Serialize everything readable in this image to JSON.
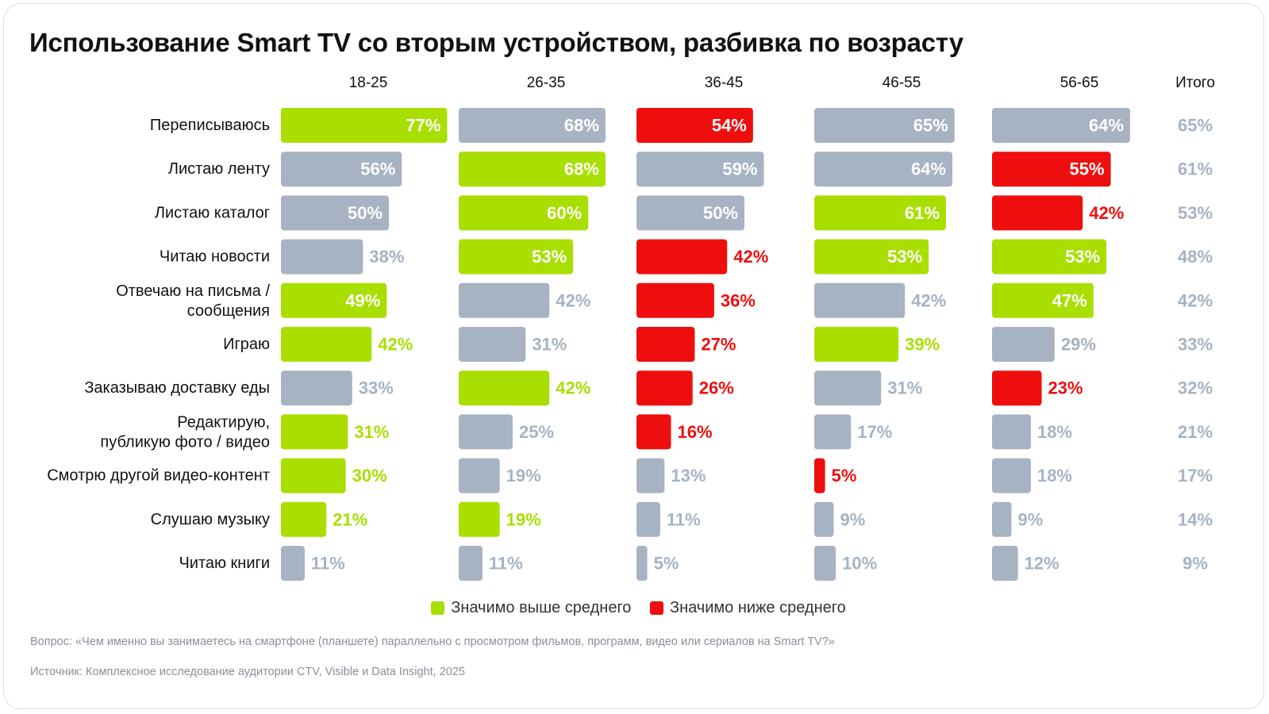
{
  "title": "Использование Smart TV со вторым устройством, разбивка по возрасту",
  "colors": {
    "above": "#a8df00",
    "below": "#ef0e0e",
    "neutral": "#a7b3c3"
  },
  "chart_data": {
    "type": "bar",
    "orientation": "horizontal",
    "title": "Использование Smart TV со вторым устройством, разбивка по возрасту",
    "total_label": "Итого",
    "categories": [
      [
        "Переписываюсь"
      ],
      [
        "Листаю ленту"
      ],
      [
        "Листаю каталог"
      ],
      [
        "Читаю новости"
      ],
      [
        "Отвечаю на письма /",
        "сообщения"
      ],
      [
        "Играю"
      ],
      [
        "Заказываю доставку еды"
      ],
      [
        "Редактирую,",
        "публикую фото / видео"
      ],
      [
        "Смотрю другой видео-контент"
      ],
      [
        "Слушаю музыку"
      ],
      [
        "Читаю книги"
      ]
    ],
    "series": [
      {
        "name": "18-25",
        "values": [
          77,
          56,
          50,
          38,
          49,
          42,
          33,
          31,
          30,
          21,
          11
        ],
        "significance": [
          "above",
          "neutral",
          "neutral",
          "neutral",
          "above",
          "above",
          "neutral",
          "above",
          "above",
          "above",
          "neutral"
        ]
      },
      {
        "name": "26-35",
        "values": [
          68,
          68,
          60,
          53,
          42,
          31,
          42,
          25,
          19,
          19,
          11
        ],
        "significance": [
          "neutral",
          "above",
          "above",
          "above",
          "neutral",
          "neutral",
          "above",
          "neutral",
          "neutral",
          "above",
          "neutral"
        ]
      },
      {
        "name": "36-45",
        "values": [
          54,
          59,
          50,
          42,
          36,
          27,
          26,
          16,
          13,
          11,
          5
        ],
        "significance": [
          "below",
          "neutral",
          "neutral",
          "below",
          "below",
          "below",
          "below",
          "below",
          "neutral",
          "neutral",
          "neutral"
        ]
      },
      {
        "name": "46-55",
        "values": [
          65,
          64,
          61,
          53,
          42,
          39,
          31,
          17,
          5,
          9,
          10
        ],
        "significance": [
          "neutral",
          "neutral",
          "above",
          "above",
          "neutral",
          "above",
          "neutral",
          "neutral",
          "below",
          "neutral",
          "neutral"
        ]
      },
      {
        "name": "56-65",
        "values": [
          64,
          55,
          42,
          53,
          47,
          29,
          23,
          18,
          18,
          9,
          12
        ],
        "significance": [
          "neutral",
          "below",
          "below",
          "above",
          "above",
          "neutral",
          "below",
          "neutral",
          "neutral",
          "neutral",
          "neutral"
        ]
      }
    ],
    "totals": [
      65,
      61,
      53,
      48,
      42,
      33,
      32,
      21,
      17,
      14,
      9
    ],
    "value_suffix": "%",
    "legend": [
      {
        "key": "above",
        "label": "Значимо выше среднего"
      },
      {
        "key": "below",
        "label": "Значимо ниже среднего"
      }
    ],
    "legend_placement": "bottom-center",
    "grid": false
  },
  "footer": {
    "question": "Вопрос: «Чем именно вы занимаетесь на смартфоне (планшете) параллельно с просмотром фильмов, программ, видео или сериалов на Smart TV?»",
    "source": "Источник: Комплексное исследование аудитории CTV, Visible и Data Insight, 2025"
  }
}
